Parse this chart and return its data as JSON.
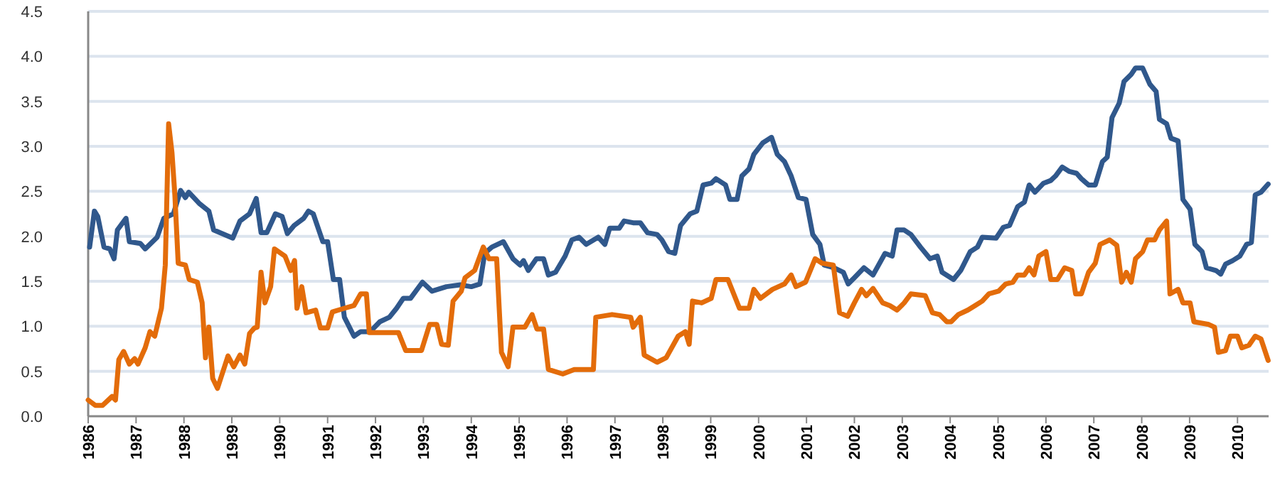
{
  "chart_data": {
    "type": "line",
    "xlim": [
      1986,
      2010.65
    ],
    "xticks": [
      1986,
      1987,
      1988,
      1989,
      1990,
      1991,
      1992,
      1993,
      1994,
      1995,
      1996,
      1997,
      1998,
      1999,
      2000,
      2001,
      2002,
      2003,
      2004,
      2005,
      2006,
      2007,
      2008,
      2009,
      2010
    ],
    "ylim": [
      0,
      4.5
    ],
    "yticks": [
      {
        "value": 0,
        "label": "0.0"
      },
      {
        "value": 0.5,
        "label": "0.5"
      },
      {
        "value": 1,
        "label": "1.0"
      },
      {
        "value": 1.5,
        "label": "1.5"
      },
      {
        "value": 2,
        "label": "2.0"
      },
      {
        "value": 2.5,
        "label": "2.5"
      },
      {
        "value": 3,
        "label": "3.0"
      },
      {
        "value": 3.5,
        "label": "3.5"
      },
      {
        "value": 4,
        "label": "4.0"
      },
      {
        "value": 4.5,
        "label": "4.5"
      }
    ],
    "grid": "y",
    "marker": "none",
    "line_style": "solid",
    "series": [
      {
        "color": "#30588c",
        "x": [
          1986.03,
          1986.13,
          1986.2,
          1986.33,
          1986.45,
          1986.54,
          1986.61,
          1986.79,
          1986.86,
          1987.09,
          1987.19,
          1987.44,
          1987.58,
          1987.78,
          1987.93,
          1988.03,
          1988.1,
          1988.33,
          1988.52,
          1988.62,
          1989.02,
          1989.17,
          1989.37,
          1989.51,
          1989.61,
          1989.73,
          1989.91,
          1990.05,
          1990.16,
          1990.3,
          1990.5,
          1990.6,
          1990.7,
          1990.9,
          1991.0,
          1991.12,
          1991.25,
          1991.35,
          1991.55,
          1991.69,
          1991.89,
          1992.09,
          1992.29,
          1992.44,
          1992.58,
          1992.73,
          1992.98,
          1993.18,
          1993.48,
          1993.77,
          1994.0,
          1994.18,
          1994.28,
          1994.43,
          1994.67,
          1994.87,
          1995.02,
          1995.09,
          1995.19,
          1995.36,
          1995.51,
          1995.61,
          1995.76,
          1995.96,
          1996.1,
          1996.25,
          1996.4,
          1996.65,
          1996.79,
          1996.89,
          1997.09,
          1997.19,
          1997.38,
          1997.53,
          1997.68,
          1997.88,
          1997.98,
          1998.12,
          1998.25,
          1998.37,
          1998.57,
          1998.71,
          1998.84,
          1999.01,
          1999.11,
          1999.31,
          1999.4,
          1999.55,
          1999.65,
          1999.8,
          1999.9,
          2000.09,
          2000.27,
          2000.39,
          2000.54,
          2000.68,
          2000.83,
          2000.99,
          2001.13,
          2001.28,
          2001.37,
          2001.57,
          2001.77,
          2001.87,
          2002.0,
          2002.2,
          2002.39,
          2002.64,
          2002.79,
          2002.89,
          2003.04,
          2003.18,
          2003.38,
          2003.58,
          2003.73,
          2003.83,
          2004.07,
          2004.22,
          2004.42,
          2004.57,
          2004.67,
          2004.96,
          2005.11,
          2005.24,
          2005.41,
          2005.55,
          2005.65,
          2005.77,
          2005.95,
          2006.1,
          2006.2,
          2006.34,
          2006.49,
          2006.64,
          2006.74,
          2006.89,
          2007.03,
          2007.18,
          2007.28,
          2007.38,
          2007.53,
          2007.63,
          2007.78,
          2007.87,
          2008.02,
          2008.17,
          2008.3,
          2008.37,
          2008.52,
          2008.61,
          2008.76,
          2008.86,
          2009.01,
          2009.11,
          2009.26,
          2009.35,
          2009.55,
          2009.65,
          2009.75,
          2009.9,
          2010.05,
          2010.19,
          2010.29,
          2010.37,
          2010.49,
          2010.64
        ],
        "values": [
          1.88,
          2.28,
          2.22,
          1.88,
          1.86,
          1.75,
          2.07,
          2.2,
          1.94,
          1.92,
          1.86,
          1.99,
          2.2,
          2.25,
          2.51,
          2.43,
          2.49,
          2.36,
          2.28,
          2.07,
          1.98,
          2.17,
          2.25,
          2.42,
          2.04,
          2.04,
          2.25,
          2.22,
          2.03,
          2.12,
          2.2,
          2.28,
          2.25,
          1.94,
          1.94,
          1.52,
          1.52,
          1.1,
          0.89,
          0.94,
          0.94,
          1.05,
          1.1,
          1.2,
          1.31,
          1.31,
          1.49,
          1.39,
          1.44,
          1.46,
          1.44,
          1.47,
          1.81,
          1.88,
          1.94,
          1.75,
          1.68,
          1.73,
          1.62,
          1.75,
          1.75,
          1.57,
          1.6,
          1.78,
          1.96,
          1.99,
          1.91,
          1.99,
          1.91,
          2.09,
          2.09,
          2.17,
          2.15,
          2.15,
          2.04,
          2.02,
          1.96,
          1.83,
          1.81,
          2.12,
          2.25,
          2.28,
          2.57,
          2.59,
          2.64,
          2.57,
          2.41,
          2.41,
          2.67,
          2.75,
          2.91,
          3.04,
          3.1,
          2.91,
          2.83,
          2.67,
          2.43,
          2.41,
          2.02,
          1.91,
          1.68,
          1.65,
          1.6,
          1.47,
          1.54,
          1.65,
          1.57,
          1.81,
          1.78,
          2.07,
          2.07,
          2.02,
          1.88,
          1.75,
          1.78,
          1.6,
          1.52,
          1.62,
          1.83,
          1.88,
          1.99,
          1.98,
          2.1,
          2.12,
          2.33,
          2.38,
          2.57,
          2.49,
          2.59,
          2.62,
          2.67,
          2.77,
          2.72,
          2.7,
          2.64,
          2.57,
          2.57,
          2.83,
          2.88,
          3.32,
          3.48,
          3.72,
          3.8,
          3.87,
          3.87,
          3.69,
          3.61,
          3.3,
          3.25,
          3.09,
          3.06,
          2.41,
          2.3,
          1.91,
          1.83,
          1.65,
          1.62,
          1.58,
          1.69,
          1.73,
          1.78,
          1.91,
          1.93,
          2.46,
          2.49,
          2.58
        ]
      },
      {
        "color": "#e36c0a",
        "x": [
          1986.0,
          1986.15,
          1986.3,
          1986.5,
          1986.57,
          1986.64,
          1986.74,
          1986.86,
          1986.97,
          1987.04,
          1987.19,
          1987.29,
          1987.39,
          1987.53,
          1987.61,
          1987.68,
          1987.75,
          1987.81,
          1987.88,
          1988.03,
          1988.11,
          1988.28,
          1988.38,
          1988.45,
          1988.52,
          1988.6,
          1988.7,
          1988.92,
          1989.04,
          1989.17,
          1989.27,
          1989.37,
          1989.47,
          1989.53,
          1989.61,
          1989.69,
          1989.81,
          1989.89,
          1990.11,
          1990.23,
          1990.31,
          1990.36,
          1990.46,
          1990.55,
          1990.75,
          1990.85,
          1991.0,
          1991.1,
          1991.35,
          1991.55,
          1991.69,
          1991.81,
          1991.87,
          1992.48,
          1992.63,
          1992.96,
          1993.13,
          1993.28,
          1993.38,
          1993.52,
          1993.62,
          1993.79,
          1993.87,
          1994.07,
          1994.25,
          1994.37,
          1994.53,
          1994.63,
          1994.77,
          1994.87,
          1995.12,
          1995.27,
          1995.37,
          1995.51,
          1995.61,
          1995.91,
          1996.15,
          1996.55,
          1996.6,
          1996.94,
          1997.33,
          1997.38,
          1997.53,
          1997.61,
          1997.88,
          1998.07,
          1998.32,
          1998.47,
          1998.55,
          1998.62,
          1998.81,
          1999.01,
          1999.11,
          1999.36,
          1999.6,
          1999.8,
          1999.9,
          2000.04,
          2000.29,
          2000.54,
          2000.68,
          2000.78,
          2000.98,
          2001.18,
          2001.33,
          2001.56,
          2001.69,
          2001.86,
          2002.0,
          2002.15,
          2002.25,
          2002.39,
          2002.59,
          2002.74,
          2002.89,
          2003.04,
          2003.18,
          2003.48,
          2003.63,
          2003.78,
          2003.93,
          2004.02,
          2004.17,
          2004.37,
          2004.52,
          2004.67,
          2004.81,
          2005.01,
          2005.16,
          2005.31,
          2005.41,
          2005.55,
          2005.65,
          2005.75,
          2005.85,
          2006.0,
          2006.1,
          2006.24,
          2006.39,
          2006.54,
          2006.62,
          2006.74,
          2006.89,
          2007.03,
          2007.13,
          2007.33,
          2007.48,
          2007.58,
          2007.68,
          2007.78,
          2007.87,
          2008.02,
          2008.12,
          2008.27,
          2008.37,
          2008.52,
          2008.59,
          2008.76,
          2008.86,
          2009.01,
          2009.09,
          2009.4,
          2009.52,
          2009.6,
          2009.75,
          2009.85,
          2010.0,
          2010.09,
          2010.24,
          2010.37,
          2010.49,
          2010.64
        ],
        "values": [
          0.18,
          0.12,
          0.12,
          0.22,
          0.18,
          0.63,
          0.72,
          0.58,
          0.64,
          0.58,
          0.76,
          0.94,
          0.89,
          1.2,
          1.68,
          3.25,
          2.93,
          2.46,
          1.7,
          1.68,
          1.52,
          1.49,
          1.26,
          0.65,
          0.99,
          0.42,
          0.31,
          0.67,
          0.55,
          0.68,
          0.58,
          0.92,
          0.98,
          0.99,
          1.6,
          1.26,
          1.44,
          1.86,
          1.78,
          1.62,
          1.73,
          1.2,
          1.44,
          1.15,
          1.18,
          0.98,
          0.98,
          1.16,
          1.2,
          1.23,
          1.36,
          1.36,
          0.93,
          0.93,
          0.73,
          0.73,
          1.02,
          1.02,
          0.8,
          0.79,
          1.28,
          1.39,
          1.54,
          1.62,
          1.88,
          1.75,
          1.75,
          0.71,
          0.55,
          0.99,
          0.99,
          1.13,
          0.97,
          0.97,
          0.52,
          0.47,
          0.52,
          0.52,
          1.1,
          1.13,
          1.1,
          0.99,
          1.1,
          0.68,
          0.6,
          0.65,
          0.89,
          0.94,
          0.8,
          1.28,
          1.26,
          1.31,
          1.52,
          1.52,
          1.2,
          1.2,
          1.41,
          1.31,
          1.41,
          1.47,
          1.57,
          1.44,
          1.49,
          1.75,
          1.7,
          1.68,
          1.15,
          1.11,
          1.26,
          1.41,
          1.34,
          1.42,
          1.26,
          1.23,
          1.18,
          1.26,
          1.36,
          1.34,
          1.15,
          1.13,
          1.05,
          1.05,
          1.13,
          1.18,
          1.23,
          1.28,
          1.36,
          1.39,
          1.47,
          1.49,
          1.57,
          1.57,
          1.65,
          1.57,
          1.78,
          1.83,
          1.52,
          1.52,
          1.65,
          1.62,
          1.36,
          1.36,
          1.6,
          1.7,
          1.91,
          1.96,
          1.9,
          1.49,
          1.6,
          1.49,
          1.75,
          1.83,
          1.96,
          1.96,
          2.07,
          2.17,
          1.36,
          1.41,
          1.26,
          1.26,
          1.05,
          1.02,
          0.99,
          0.71,
          0.73,
          0.89,
          0.89,
          0.76,
          0.79,
          0.89,
          0.86,
          0.62
        ]
      }
    ]
  }
}
